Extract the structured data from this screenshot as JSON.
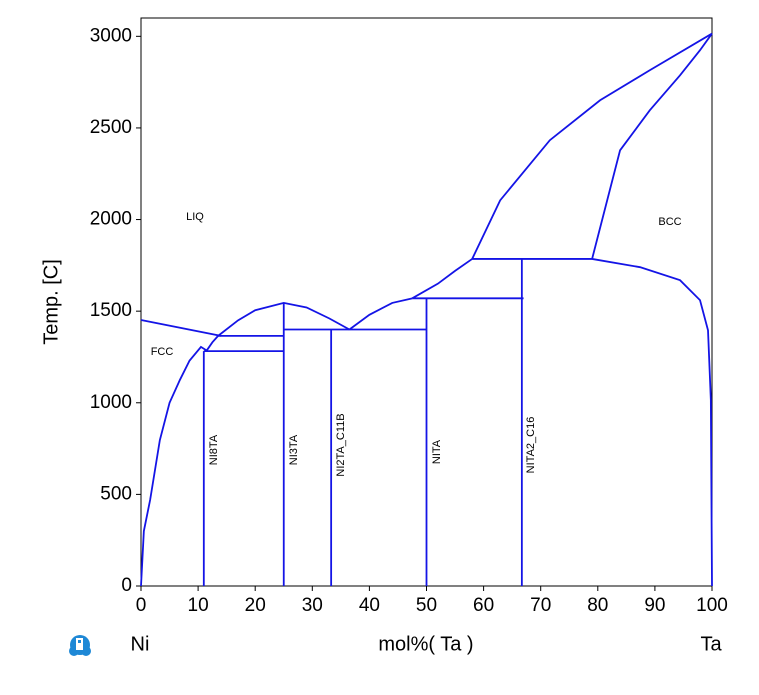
{
  "chart_data": {
    "type": "line",
    "xlabel": "mol%(  Ta )",
    "ylabel": "Temp.  [C]",
    "x_left_label": "Ni",
    "x_right_label": "Ta",
    "xlim": [
      0,
      100
    ],
    "xticks": [
      0,
      10,
      20,
      30,
      40,
      50,
      60,
      70,
      80,
      90,
      100
    ],
    "ylim": [
      0,
      3100
    ],
    "yticks": [
      0,
      500,
      1000,
      1500,
      2000,
      2500,
      3000
    ],
    "annotations": [
      "LIQ",
      "BCC",
      "FCC",
      "NI8TA",
      "NI3TA",
      "NI2TA_C11B",
      "NITA",
      "NITA2_C16"
    ],
    "series": [
      {
        "color": "#1414e6",
        "x": [
          0,
          14
        ],
        "values": [
          1452,
          1365
        ]
      },
      {
        "color": "#1414e6",
        "x": [
          0,
          0.5,
          1.6,
          3.3,
          5,
          6.8,
          8.5,
          10.5,
          11.5
        ],
        "values": [
          0,
          300,
          470,
          796,
          1000,
          1124,
          1230,
          1305,
          1285
        ]
      },
      {
        "color": "#1414e6",
        "x": [
          11.5,
          12.5,
          13.5
        ],
        "values": [
          1285,
          1330,
          1365
        ]
      },
      {
        "color": "#1414e6",
        "x": [
          11,
          25
        ],
        "values": [
          1282,
          1282
        ]
      },
      {
        "color": "#1414e6",
        "x": [
          13.5,
          25
        ],
        "values": [
          1365,
          1365
        ]
      },
      {
        "color": "#1414e6",
        "x": [
          13.5,
          17,
          20,
          25,
          29,
          33,
          36.5
        ],
        "values": [
          1365,
          1450,
          1505,
          1545,
          1520,
          1460,
          1400
        ]
      },
      {
        "color": "#1414e6",
        "x": [
          25,
          50
        ],
        "values": [
          1400,
          1400
        ]
      },
      {
        "color": "#1414e6",
        "x": [
          36.5,
          40,
          44,
          47.5
        ],
        "values": [
          1400,
          1480,
          1545,
          1570
        ]
      },
      {
        "color": "#1414e6",
        "x": [
          47.5,
          67
        ],
        "values": [
          1570,
          1570
        ]
      },
      {
        "color": "#1414e6",
        "x": [
          47.5,
          52,
          55,
          58
        ],
        "values": [
          1570,
          1650,
          1720,
          1785
        ]
      },
      {
        "color": "#1414e6",
        "x": [
          58,
          79
        ],
        "values": [
          1785,
          1785
        ]
      },
      {
        "color": "#1414e6",
        "x": [
          58,
          62.9,
          71.6,
          80.4,
          89.1,
          100
        ],
        "values": [
          1785,
          2105,
          2433,
          2651,
          2815,
          3015
        ]
      },
      {
        "color": "#1414e6",
        "x": [
          79,
          83.9,
          89.1,
          94.4,
          97.9,
          100
        ],
        "values": [
          1785,
          2378,
          2596,
          2787,
          2924,
          3015
        ]
      },
      {
        "color": "#1414e6",
        "x": [
          79,
          87.4,
          94.4,
          97.9,
          99.3,
          99.8,
          100
        ],
        "values": [
          1785,
          1740,
          1669,
          1560,
          1396,
          1015,
          0
        ]
      },
      {
        "color": "#1414e6",
        "x": [
          11,
          11
        ],
        "values": [
          0,
          1282
        ]
      },
      {
        "color": "#1414e6",
        "x": [
          25,
          25
        ],
        "values": [
          0,
          1545
        ]
      },
      {
        "color": "#1414e6",
        "x": [
          33.3,
          33.3
        ],
        "values": [
          0,
          1400
        ]
      },
      {
        "color": "#1414e6",
        "x": [
          50,
          50
        ],
        "values": [
          0,
          1570
        ]
      },
      {
        "color": "#1414e6",
        "x": [
          66.7,
          66.7
        ],
        "values": [
          0,
          1785
        ]
      }
    ]
  }
}
